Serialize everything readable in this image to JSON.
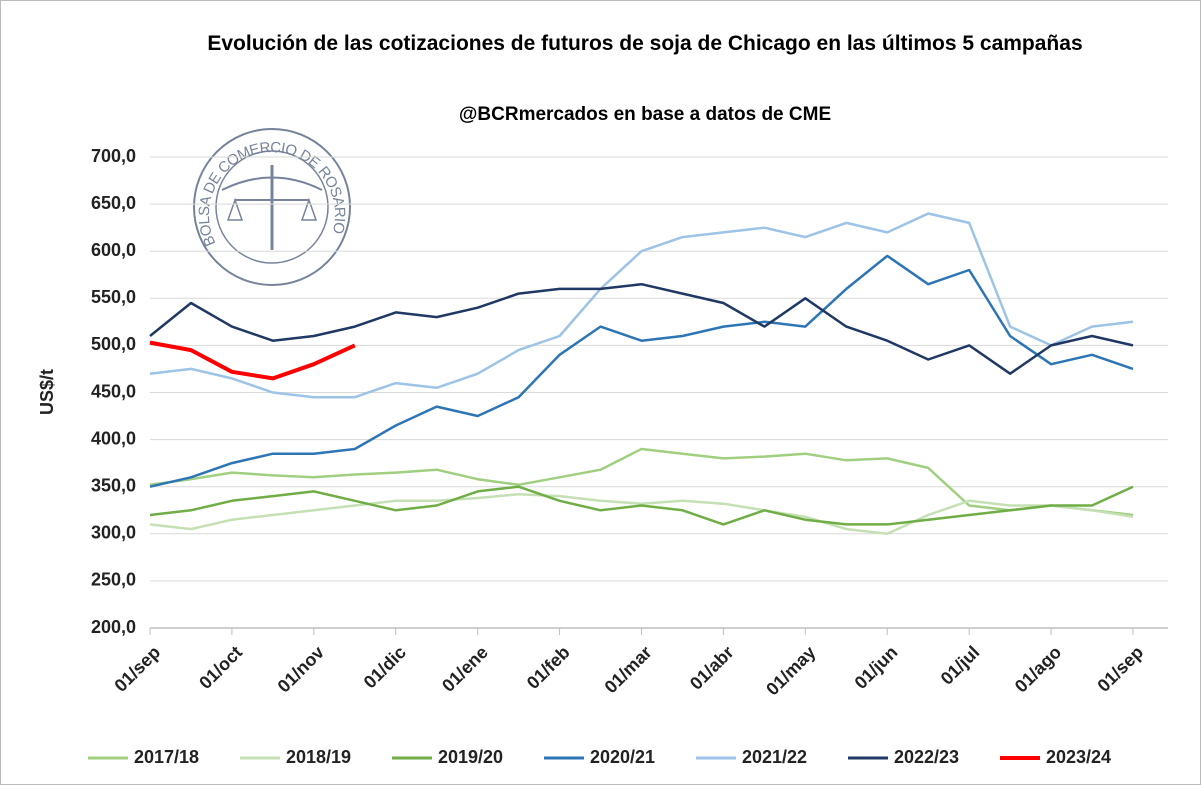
{
  "chart_data": {
    "type": "line",
    "title": "Evolución de las cotizaciones de futuros de soja de Chicago en las últimos 5 campañas",
    "subtitle": "@BCRmercados en base a datos de CME",
    "logo_text": "BOLSA DE COMERCIO DE ROSARIO",
    "y_label": "US$/t",
    "categories": [
      "01/sep",
      null,
      "01/oct",
      null,
      "01/nov",
      null,
      "01/dic",
      null,
      "01/ene",
      null,
      "01/feb",
      null,
      "01/mar",
      null,
      "01/abr",
      null,
      "01/may",
      null,
      "01/jun",
      null,
      "01/jul",
      null,
      "01/ago",
      null,
      "01/sep"
    ],
    "ylim": [
      200,
      700
    ],
    "yticks": [
      {
        "value": 200,
        "label": "200,0"
      },
      {
        "value": 250,
        "label": "250,0"
      },
      {
        "value": 300,
        "label": "300,0"
      },
      {
        "value": 350,
        "label": "350,0"
      },
      {
        "value": 400,
        "label": "400,0"
      },
      {
        "value": 450,
        "label": "450,0"
      },
      {
        "value": 500,
        "label": "500,0"
      },
      {
        "value": 550,
        "label": "550,0"
      },
      {
        "value": 600,
        "label": "600,0"
      },
      {
        "value": 650,
        "label": "650,0"
      },
      {
        "value": 700,
        "label": "700,0"
      }
    ],
    "grid": true,
    "legend": "bottom",
    "series": [
      {
        "name": "2017/18",
        "color": "#a0cf80",
        "values": [
          352,
          358,
          365,
          362,
          360,
          363,
          365,
          368,
          358,
          352,
          360,
          368,
          390,
          385,
          380,
          382,
          385,
          378,
          380,
          370,
          330,
          325,
          330,
          325,
          320
        ]
      },
      {
        "name": "2018/19",
        "color": "#c5e0b4",
        "values": [
          310,
          305,
          315,
          320,
          325,
          330,
          335,
          335,
          338,
          342,
          340,
          335,
          332,
          335,
          332,
          325,
          318,
          305,
          300,
          320,
          335,
          330,
          330,
          325,
          318
        ]
      },
      {
        "name": "2019/20",
        "color": "#70ad47",
        "values": [
          320,
          325,
          335,
          340,
          345,
          335,
          325,
          330,
          345,
          350,
          335,
          325,
          330,
          325,
          310,
          325,
          315,
          310,
          310,
          315,
          320,
          325,
          330,
          330,
          350
        ]
      },
      {
        "name": "2020/21",
        "color": "#2e75b6",
        "values": [
          350,
          360,
          375,
          385,
          385,
          390,
          415,
          435,
          425,
          445,
          490,
          520,
          505,
          510,
          520,
          525,
          520,
          560,
          595,
          565,
          580,
          510,
          480,
          490,
          475
        ]
      },
      {
        "name": "2021/22",
        "color": "#9dc3e6",
        "values": [
          470,
          475,
          465,
          450,
          445,
          445,
          460,
          455,
          470,
          495,
          510,
          560,
          600,
          615,
          620,
          625,
          615,
          630,
          620,
          640,
          630,
          520,
          500,
          520,
          525
        ]
      },
      {
        "name": "2022/23",
        "color": "#1f3864",
        "values": [
          510,
          545,
          520,
          505,
          510,
          520,
          535,
          530,
          540,
          555,
          560,
          560,
          565,
          555,
          545,
          520,
          550,
          520,
          505,
          485,
          500,
          470,
          500,
          510,
          500
        ]
      },
      {
        "name": "2023/24",
        "color": "#ff0000",
        "values": [
          503,
          495,
          472,
          465,
          480,
          500,
          null,
          null,
          null,
          null,
          null,
          null,
          null,
          null,
          null,
          null,
          null,
          null,
          null,
          null,
          null,
          null,
          null,
          null,
          null
        ]
      }
    ]
  }
}
